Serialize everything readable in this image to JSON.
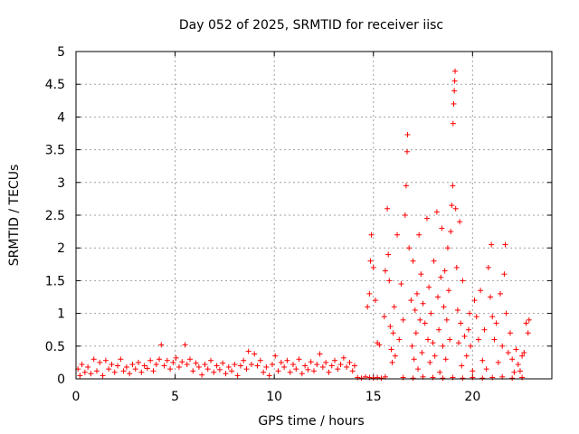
{
  "chart_data": {
    "type": "scatter",
    "title": "Day 052 of 2025, SRMTID for receiver iisc",
    "xlabel": "GPS time / hours",
    "ylabel": "SRMTID / TECUs",
    "xlim": [
      0,
      24
    ],
    "ylim": [
      0,
      5
    ],
    "grid": true,
    "marker": "+",
    "x_ticks": [
      0,
      5,
      10,
      15,
      20
    ],
    "x_tick_labels": [
      "0",
      "5",
      "10",
      "15",
      "20"
    ],
    "y_ticks": [
      0,
      0.5,
      1,
      1.5,
      2,
      2.5,
      3,
      3.5,
      4,
      4.5,
      5
    ],
    "y_tick_labels": [
      "0",
      "0.5",
      "1",
      "1.5",
      "2",
      "2.5",
      "3",
      "3.5",
      "4",
      "4.5",
      "5"
    ],
    "series": [
      {
        "name": "SRMTID",
        "color": "#ff0000",
        "points": [
          [
            0.1,
            0.15
          ],
          [
            0.2,
            0.05
          ],
          [
            0.3,
            0.22
          ],
          [
            0.45,
            0.1
          ],
          [
            0.6,
            0.18
          ],
          [
            0.75,
            0.08
          ],
          [
            0.9,
            0.3
          ],
          [
            1.05,
            0.12
          ],
          [
            1.2,
            0.25
          ],
          [
            1.35,
            0.05
          ],
          [
            1.5,
            0.28
          ],
          [
            1.65,
            0.15
          ],
          [
            1.8,
            0.22
          ],
          [
            1.95,
            0.1
          ],
          [
            2.1,
            0.2
          ],
          [
            2.25,
            0.3
          ],
          [
            2.4,
            0.12
          ],
          [
            2.55,
            0.18
          ],
          [
            2.7,
            0.08
          ],
          [
            2.85,
            0.22
          ],
          [
            3.0,
            0.15
          ],
          [
            3.15,
            0.25
          ],
          [
            3.3,
            0.1
          ],
          [
            3.45,
            0.2
          ],
          [
            3.6,
            0.16
          ],
          [
            3.75,
            0.28
          ],
          [
            3.9,
            0.12
          ],
          [
            4.05,
            0.22
          ],
          [
            4.2,
            0.3
          ],
          [
            4.3,
            0.52
          ],
          [
            4.45,
            0.2
          ],
          [
            4.6,
            0.28
          ],
          [
            4.75,
            0.15
          ],
          [
            4.9,
            0.25
          ],
          [
            5.05,
            0.32
          ],
          [
            5.2,
            0.18
          ],
          [
            5.35,
            0.26
          ],
          [
            5.5,
            0.52
          ],
          [
            5.6,
            0.22
          ],
          [
            5.75,
            0.3
          ],
          [
            5.9,
            0.12
          ],
          [
            6.05,
            0.24
          ],
          [
            6.2,
            0.18
          ],
          [
            6.35,
            0.06
          ],
          [
            6.5,
            0.22
          ],
          [
            6.65,
            0.15
          ],
          [
            6.8,
            0.28
          ],
          [
            6.95,
            0.1
          ],
          [
            7.1,
            0.2
          ],
          [
            7.25,
            0.14
          ],
          [
            7.4,
            0.24
          ],
          [
            7.55,
            0.08
          ],
          [
            7.7,
            0.18
          ],
          [
            7.85,
            0.12
          ],
          [
            8.0,
            0.22
          ],
          [
            8.15,
            0.05
          ],
          [
            8.3,
            0.2
          ],
          [
            8.45,
            0.28
          ],
          [
            8.6,
            0.15
          ],
          [
            8.7,
            0.42
          ],
          [
            8.85,
            0.22
          ],
          [
            9.0,
            0.38
          ],
          [
            9.15,
            0.2
          ],
          [
            9.3,
            0.28
          ],
          [
            9.45,
            0.1
          ],
          [
            9.6,
            0.18
          ],
          [
            9.75,
            0.05
          ],
          [
            9.9,
            0.22
          ],
          [
            10.05,
            0.35
          ],
          [
            10.2,
            0.12
          ],
          [
            10.35,
            0.25
          ],
          [
            10.5,
            0.18
          ],
          [
            10.65,
            0.28
          ],
          [
            10.8,
            0.1
          ],
          [
            10.95,
            0.22
          ],
          [
            11.1,
            0.15
          ],
          [
            11.25,
            0.3
          ],
          [
            11.4,
            0.08
          ],
          [
            11.55,
            0.2
          ],
          [
            11.7,
            0.14
          ],
          [
            11.85,
            0.26
          ],
          [
            12.0,
            0.12
          ],
          [
            12.15,
            0.22
          ],
          [
            12.3,
            0.38
          ],
          [
            12.45,
            0.18
          ],
          [
            12.6,
            0.25
          ],
          [
            12.75,
            0.1
          ],
          [
            12.9,
            0.2
          ],
          [
            13.05,
            0.28
          ],
          [
            13.2,
            0.15
          ],
          [
            13.35,
            0.22
          ],
          [
            13.5,
            0.32
          ],
          [
            13.65,
            0.18
          ],
          [
            13.8,
            0.25
          ],
          [
            13.95,
            0.12
          ],
          [
            14.05,
            0.2
          ],
          [
            14.2,
            0.02
          ],
          [
            14.4,
            0.01
          ],
          [
            14.6,
            0.03
          ],
          [
            14.8,
            0.02
          ],
          [
            15.0,
            0.01
          ],
          [
            15.2,
            0.02
          ],
          [
            15.4,
            0.01
          ],
          [
            15.6,
            0.03
          ],
          [
            14.7,
            1.1
          ],
          [
            14.8,
            1.3
          ],
          [
            14.85,
            1.8
          ],
          [
            14.9,
            2.2
          ],
          [
            15.0,
            1.7
          ],
          [
            15.1,
            1.2
          ],
          [
            15.2,
            0.55
          ],
          [
            15.3,
            0.52
          ],
          [
            15.55,
            0.95
          ],
          [
            15.6,
            1.65
          ],
          [
            15.7,
            2.6
          ],
          [
            15.75,
            1.9
          ],
          [
            15.8,
            1.5
          ],
          [
            15.85,
            0.8
          ],
          [
            15.9,
            0.45
          ],
          [
            15.95,
            0.25
          ],
          [
            16.0,
            0.7
          ],
          [
            16.05,
            1.1
          ],
          [
            16.1,
            0.35
          ],
          [
            16.2,
            2.2
          ],
          [
            16.3,
            0.6
          ],
          [
            16.4,
            1.45
          ],
          [
            16.5,
            0.9
          ],
          [
            16.6,
            2.5
          ],
          [
            16.65,
            2.95
          ],
          [
            16.7,
            3.47
          ],
          [
            16.72,
            3.73
          ],
          [
            16.8,
            2.0
          ],
          [
            16.9,
            1.2
          ],
          [
            16.95,
            0.5
          ],
          [
            17.0,
            1.8
          ],
          [
            17.05,
            0.3
          ],
          [
            17.1,
            1.05
          ],
          [
            17.15,
            0.7
          ],
          [
            17.2,
            1.3
          ],
          [
            17.25,
            0.15
          ],
          [
            17.3,
            2.2
          ],
          [
            17.35,
            0.9
          ],
          [
            17.4,
            1.6
          ],
          [
            17.45,
            0.4
          ],
          [
            17.5,
            1.15
          ],
          [
            17.6,
            0.85
          ],
          [
            17.7,
            2.45
          ],
          [
            17.75,
            0.6
          ],
          [
            17.8,
            1.4
          ],
          [
            17.85,
            0.25
          ],
          [
            17.9,
            1.0
          ],
          [
            18.0,
            0.55
          ],
          [
            18.05,
            1.8
          ],
          [
            18.1,
            0.35
          ],
          [
            18.2,
            2.55
          ],
          [
            18.25,
            1.25
          ],
          [
            18.3,
            0.75
          ],
          [
            18.35,
            0.1
          ],
          [
            18.4,
            1.55
          ],
          [
            18.45,
            2.3
          ],
          [
            18.5,
            0.5
          ],
          [
            18.55,
            1.1
          ],
          [
            18.6,
            1.65
          ],
          [
            18.65,
            0.3
          ],
          [
            18.7,
            0.9
          ],
          [
            18.75,
            2.0
          ],
          [
            18.8,
            1.35
          ],
          [
            18.85,
            0.6
          ],
          [
            18.9,
            2.25
          ],
          [
            18.95,
            2.65
          ],
          [
            19.0,
            2.95
          ],
          [
            19.02,
            3.9
          ],
          [
            19.05,
            4.2
          ],
          [
            19.08,
            4.4
          ],
          [
            19.1,
            4.55
          ],
          [
            19.12,
            4.7
          ],
          [
            19.15,
            2.6
          ],
          [
            19.2,
            1.7
          ],
          [
            19.25,
            1.05
          ],
          [
            19.3,
            0.55
          ],
          [
            19.35,
            2.4
          ],
          [
            19.4,
            0.85
          ],
          [
            19.45,
            0.2
          ],
          [
            19.5,
            1.5
          ],
          [
            19.6,
            0.65
          ],
          [
            19.7,
            0.35
          ],
          [
            19.8,
            0.75
          ],
          [
            19.85,
            1.0
          ],
          [
            19.9,
            0.5
          ],
          [
            20.0,
            0.12
          ],
          [
            20.1,
            1.2
          ],
          [
            20.2,
            0.95
          ],
          [
            20.3,
            0.6
          ],
          [
            20.4,
            1.35
          ],
          [
            20.5,
            0.28
          ],
          [
            20.6,
            0.75
          ],
          [
            20.7,
            0.15
          ],
          [
            20.8,
            1.7
          ],
          [
            20.9,
            1.25
          ],
          [
            20.95,
            2.05
          ],
          [
            21.0,
            0.95
          ],
          [
            21.1,
            0.6
          ],
          [
            21.2,
            0.85
          ],
          [
            21.3,
            0.25
          ],
          [
            21.4,
            1.3
          ],
          [
            21.5,
            0.5
          ],
          [
            21.6,
            1.6
          ],
          [
            21.65,
            2.05
          ],
          [
            21.7,
            1.0
          ],
          [
            21.8,
            0.4
          ],
          [
            21.9,
            0.7
          ],
          [
            22.0,
            0.3
          ],
          [
            22.1,
            0.1
          ],
          [
            22.2,
            0.45
          ],
          [
            22.3,
            0.22
          ],
          [
            22.4,
            0.12
          ],
          [
            22.5,
            0.35
          ],
          [
            22.6,
            0.4
          ],
          [
            22.7,
            0.85
          ],
          [
            22.8,
            0.7
          ],
          [
            22.85,
            0.9
          ],
          [
            16.5,
            0.02
          ],
          [
            17.0,
            0.01
          ],
          [
            17.5,
            0.03
          ],
          [
            18.0,
            0.02
          ],
          [
            18.5,
            0.01
          ],
          [
            19.0,
            0.02
          ],
          [
            19.5,
            0.01
          ],
          [
            20.0,
            0.02
          ],
          [
            20.5,
            0.01
          ],
          [
            21.0,
            0.02
          ],
          [
            21.5,
            0.03
          ],
          [
            22.0,
            0.01
          ],
          [
            22.5,
            0.02
          ]
        ]
      }
    ]
  }
}
